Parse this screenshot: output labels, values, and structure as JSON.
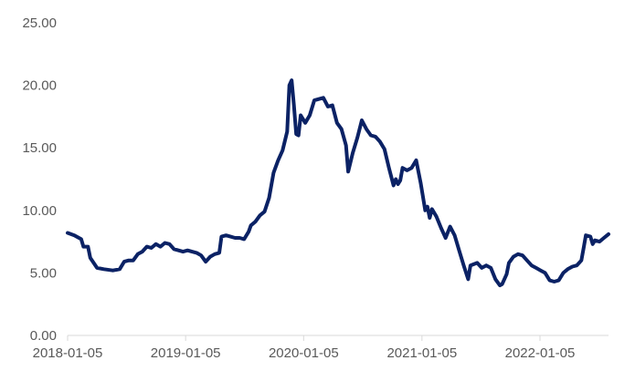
{
  "chart_data": {
    "type": "line",
    "title": "",
    "xlabel": "",
    "ylabel": "",
    "ylim": [
      0,
      25
    ],
    "yticks": [
      "0.00",
      "5.00",
      "10.00",
      "15.00",
      "20.00",
      "25.00"
    ],
    "xticks": [
      "2018-01-05",
      "2019-01-05",
      "2020-01-05",
      "2021-01-05",
      "2022-01-05"
    ],
    "xlim": [
      "2018-01-05",
      "2022-08-05"
    ],
    "grid": false,
    "legend": "none",
    "colors": {
      "line": "#0b2265",
      "axis": "#d9d9d9",
      "text": "#595959"
    },
    "series": [
      {
        "points": [
          [
            "2018-01-05",
            8.2
          ],
          [
            "2018-01-26",
            8.0
          ],
          [
            "2018-02-16",
            7.7
          ],
          [
            "2018-02-23",
            7.1
          ],
          [
            "2018-03-09",
            7.1
          ],
          [
            "2018-03-16",
            6.2
          ],
          [
            "2018-04-06",
            5.4
          ],
          [
            "2018-04-27",
            5.3
          ],
          [
            "2018-05-25",
            5.2
          ],
          [
            "2018-06-15",
            5.3
          ],
          [
            "2018-06-29",
            5.9
          ],
          [
            "2018-07-13",
            6.0
          ],
          [
            "2018-07-27",
            6.0
          ],
          [
            "2018-08-10",
            6.5
          ],
          [
            "2018-08-24",
            6.7
          ],
          [
            "2018-09-07",
            7.1
          ],
          [
            "2018-09-21",
            7.0
          ],
          [
            "2018-10-05",
            7.3
          ],
          [
            "2018-10-19",
            7.1
          ],
          [
            "2018-11-02",
            7.4
          ],
          [
            "2018-11-16",
            7.3
          ],
          [
            "2018-11-30",
            6.9
          ],
          [
            "2018-12-14",
            6.8
          ],
          [
            "2018-12-28",
            6.7
          ],
          [
            "2019-01-11",
            6.8
          ],
          [
            "2019-01-25",
            6.7
          ],
          [
            "2019-02-08",
            6.6
          ],
          [
            "2019-02-22",
            6.4
          ],
          [
            "2019-03-08",
            5.9
          ],
          [
            "2019-03-22",
            6.3
          ],
          [
            "2019-04-05",
            6.5
          ],
          [
            "2019-04-19",
            6.6
          ],
          [
            "2019-04-26",
            7.9
          ],
          [
            "2019-05-10",
            8.0
          ],
          [
            "2019-05-24",
            7.9
          ],
          [
            "2019-06-07",
            7.8
          ],
          [
            "2019-06-21",
            7.8
          ],
          [
            "2019-07-05",
            7.7
          ],
          [
            "2019-07-19",
            8.3
          ],
          [
            "2019-07-26",
            8.8
          ],
          [
            "2019-08-09",
            9.1
          ],
          [
            "2019-08-23",
            9.6
          ],
          [
            "2019-09-06",
            9.9
          ],
          [
            "2019-09-20",
            11.0
          ],
          [
            "2019-10-04",
            13.0
          ],
          [
            "2019-10-18",
            14.0
          ],
          [
            "2019-11-01",
            14.8
          ],
          [
            "2019-11-15",
            16.3
          ],
          [
            "2019-11-22",
            20.0
          ],
          [
            "2019-11-29",
            20.4
          ],
          [
            "2019-12-06",
            18.4
          ],
          [
            "2019-12-13",
            16.1
          ],
          [
            "2019-12-20",
            16.0
          ],
          [
            "2019-12-27",
            17.6
          ],
          [
            "2020-01-10",
            17.0
          ],
          [
            "2020-01-24",
            17.6
          ],
          [
            "2020-02-07",
            18.8
          ],
          [
            "2020-02-21",
            18.9
          ],
          [
            "2020-03-06",
            19.0
          ],
          [
            "2020-03-20",
            18.3
          ],
          [
            "2020-04-03",
            18.4
          ],
          [
            "2020-04-17",
            17.0
          ],
          [
            "2020-05-01",
            16.5
          ],
          [
            "2020-05-15",
            15.2
          ],
          [
            "2020-05-22",
            13.1
          ],
          [
            "2020-06-05",
            14.6
          ],
          [
            "2020-06-19",
            15.8
          ],
          [
            "2020-07-03",
            17.2
          ],
          [
            "2020-07-17",
            16.5
          ],
          [
            "2020-07-31",
            16.0
          ],
          [
            "2020-08-14",
            15.9
          ],
          [
            "2020-08-28",
            15.5
          ],
          [
            "2020-09-11",
            14.9
          ],
          [
            "2020-09-25",
            13.4
          ],
          [
            "2020-10-09",
            12.0
          ],
          [
            "2020-10-16",
            12.5
          ],
          [
            "2020-10-23",
            12.1
          ],
          [
            "2020-10-30",
            12.4
          ],
          [
            "2020-11-06",
            13.4
          ],
          [
            "2020-11-20",
            13.2
          ],
          [
            "2020-12-04",
            13.4
          ],
          [
            "2020-12-18",
            14.0
          ],
          [
            "2021-01-01",
            12.2
          ],
          [
            "2021-01-15",
            10.0
          ],
          [
            "2021-01-22",
            10.3
          ],
          [
            "2021-01-29",
            9.4
          ],
          [
            "2021-02-05",
            10.1
          ],
          [
            "2021-02-19",
            9.5
          ],
          [
            "2021-03-05",
            8.6
          ],
          [
            "2021-03-19",
            7.8
          ],
          [
            "2021-04-02",
            8.7
          ],
          [
            "2021-04-16",
            8.0
          ],
          [
            "2021-04-30",
            6.8
          ],
          [
            "2021-05-14",
            5.6
          ],
          [
            "2021-05-28",
            4.5
          ],
          [
            "2021-06-04",
            5.6
          ],
          [
            "2021-06-25",
            5.8
          ],
          [
            "2021-07-09",
            5.4
          ],
          [
            "2021-07-23",
            5.6
          ],
          [
            "2021-08-06",
            5.4
          ],
          [
            "2021-08-20",
            4.5
          ],
          [
            "2021-09-03",
            4.0
          ],
          [
            "2021-09-10",
            4.1
          ],
          [
            "2021-09-24",
            4.9
          ],
          [
            "2021-10-01",
            5.8
          ],
          [
            "2021-10-15",
            6.3
          ],
          [
            "2021-10-29",
            6.5
          ],
          [
            "2021-11-12",
            6.4
          ],
          [
            "2021-11-26",
            6.0
          ],
          [
            "2021-12-10",
            5.6
          ],
          [
            "2021-12-24",
            5.4
          ],
          [
            "2022-01-07",
            5.2
          ],
          [
            "2022-01-21",
            5.0
          ],
          [
            "2022-02-04",
            4.4
          ],
          [
            "2022-02-18",
            4.3
          ],
          [
            "2022-03-04",
            4.4
          ],
          [
            "2022-03-18",
            5.0
          ],
          [
            "2022-04-01",
            5.3
          ],
          [
            "2022-04-15",
            5.5
          ],
          [
            "2022-04-29",
            5.6
          ],
          [
            "2022-05-13",
            6.0
          ],
          [
            "2022-05-20",
            7.0
          ],
          [
            "2022-05-27",
            8.0
          ],
          [
            "2022-06-10",
            7.9
          ],
          [
            "2022-06-17",
            7.3
          ],
          [
            "2022-06-24",
            7.6
          ],
          [
            "2022-07-08",
            7.5
          ],
          [
            "2022-07-22",
            7.8
          ],
          [
            "2022-08-05",
            8.1
          ]
        ]
      }
    ]
  }
}
